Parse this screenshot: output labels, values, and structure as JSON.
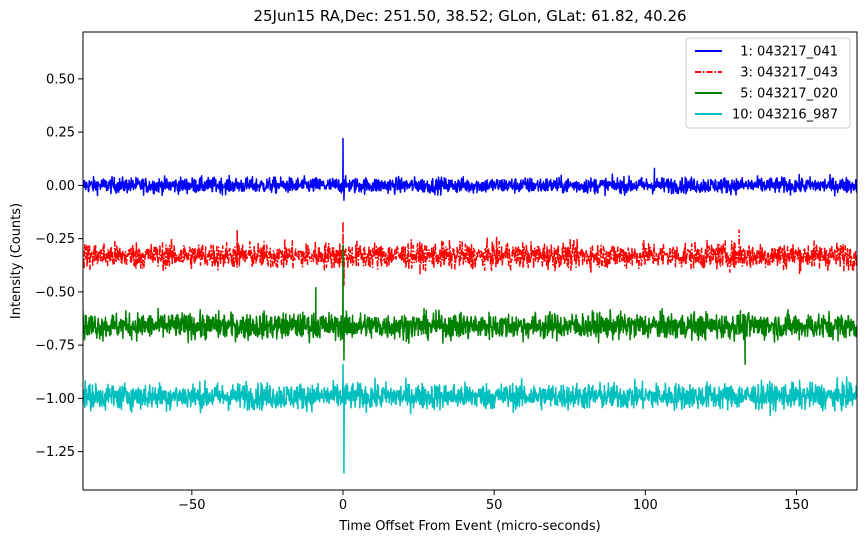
{
  "chart_data": {
    "type": "line",
    "title": "25Jun15 RA,Dec:  251.50,  38.52; GLon, GLat:   61.82,  40.26",
    "xlabel": "Time Offset From Event (micro-seconds)",
    "ylabel": "Intensity (Counts)",
    "xlim": [
      -86,
      170
    ],
    "ylim": [
      -1.43,
      0.72
    ],
    "xticks": [
      -50,
      0,
      50,
      100,
      150
    ],
    "xtick_labels": [
      "−50",
      "0",
      "50",
      "100",
      "150"
    ],
    "yticks": [
      0.5,
      0.25,
      0.0,
      -0.25,
      -0.5,
      -0.75,
      -1.0,
      -1.25
    ],
    "ytick_labels": [
      "0.50",
      "0.25",
      "0.00",
      "−0.25",
      "−0.50",
      "−0.75",
      "−1.00",
      "−1.25"
    ],
    "grid": false,
    "legend_position": "top-right",
    "series": [
      {
        "name": "1: 043217_041",
        "label": "  1: 043217_041",
        "color": "#0000ff",
        "style": "solid",
        "offset": 0.0,
        "noise": 0.018,
        "spikes": [
          {
            "x": 0.0,
            "y": 0.22
          },
          {
            "x": 0.3,
            "y": -0.07
          },
          {
            "x": 103.0,
            "y": 0.08
          }
        ]
      },
      {
        "name": "3: 043217_043",
        "label": "  3: 043217_043",
        "color": "#ff0000",
        "style": "dashdot",
        "offset": -0.33,
        "noise": 0.03,
        "spikes": [
          {
            "x": 0.0,
            "y": -0.17
          },
          {
            "x": 0.3,
            "y": -0.47
          },
          {
            "x": -35.0,
            "y": -0.21
          },
          {
            "x": 131.0,
            "y": -0.21
          }
        ]
      },
      {
        "name": "5: 043217_020",
        "label": "  5: 043217_020",
        "color": "#008000",
        "style": "solid",
        "offset": -0.66,
        "noise": 0.03,
        "spikes": [
          {
            "x": 0.0,
            "y": -0.28
          },
          {
            "x": 0.3,
            "y": -0.82
          },
          {
            "x": -9.0,
            "y": -0.48
          },
          {
            "x": 133.0,
            "y": -0.84
          }
        ]
      },
      {
        "name": "10: 043216_987",
        "label": "10: 043216_987",
        "color": "#00bfbf",
        "style": "solid",
        "offset": -0.99,
        "noise": 0.03,
        "spikes": [
          {
            "x": 0.0,
            "y": -0.84
          },
          {
            "x": 0.3,
            "y": -1.35
          },
          {
            "x": -32.0,
            "y": -0.92
          },
          {
            "x": 168.0,
            "y": -0.93
          }
        ]
      }
    ]
  }
}
